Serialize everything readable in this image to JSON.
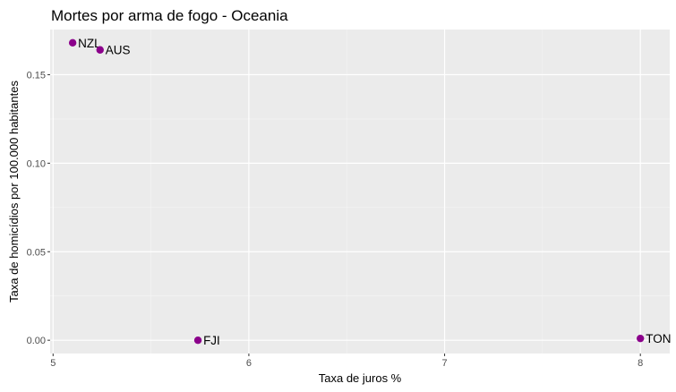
{
  "chart_data": {
    "type": "scatter",
    "title": "Mortes por arma de fogo - Oceania",
    "xlabel": "Taxa de juros %",
    "ylabel": "Taxa de homicídios por 100.000 habitantes",
    "xlim": [
      4.985,
      8.15
    ],
    "ylim": [
      -0.0075,
      0.1755
    ],
    "x_ticks": [
      5,
      6,
      7,
      8
    ],
    "x_tick_labels": [
      "5",
      "6",
      "7",
      "8"
    ],
    "y_ticks": [
      0,
      0.05,
      0.1,
      0.15
    ],
    "y_tick_labels": [
      "0.00",
      "0.05",
      "0.10",
      "0.15"
    ],
    "grid": true,
    "point_color": "#8b008b",
    "points": [
      {
        "label": "NZL",
        "x": 5.1,
        "y": 0.168
      },
      {
        "label": "AUS",
        "x": 5.24,
        "y": 0.164
      },
      {
        "label": "FJI",
        "x": 5.74,
        "y": 0.0
      },
      {
        "label": "TON",
        "x": 8.0,
        "y": 0.001
      }
    ]
  }
}
